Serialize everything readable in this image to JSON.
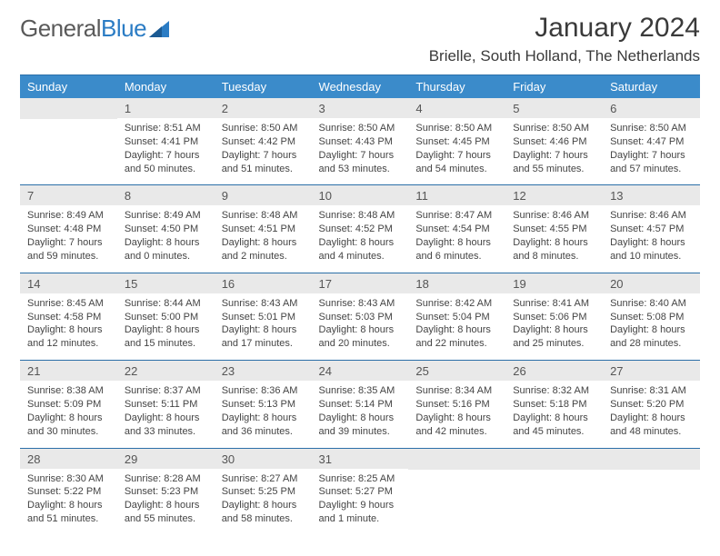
{
  "brand": {
    "part1": "General",
    "part2": "Blue"
  },
  "header": {
    "month_title": "January 2024",
    "location": "Brielle, South Holland, The Netherlands"
  },
  "style": {
    "header_bg": "#3b8bca",
    "header_fg": "#ffffff",
    "daynum_bg": "#e9e9e9",
    "rule_color": "#2b6fa8",
    "text_color": "#444444",
    "brand_gray": "#5a5a5a",
    "brand_blue": "#2b7cc4"
  },
  "weekdays": [
    "Sunday",
    "Monday",
    "Tuesday",
    "Wednesday",
    "Thursday",
    "Friday",
    "Saturday"
  ],
  "weeks": [
    [
      null,
      {
        "n": "1",
        "sr": "Sunrise: 8:51 AM",
        "ss": "Sunset: 4:41 PM",
        "d1": "Daylight: 7 hours",
        "d2": "and 50 minutes."
      },
      {
        "n": "2",
        "sr": "Sunrise: 8:50 AM",
        "ss": "Sunset: 4:42 PM",
        "d1": "Daylight: 7 hours",
        "d2": "and 51 minutes."
      },
      {
        "n": "3",
        "sr": "Sunrise: 8:50 AM",
        "ss": "Sunset: 4:43 PM",
        "d1": "Daylight: 7 hours",
        "d2": "and 53 minutes."
      },
      {
        "n": "4",
        "sr": "Sunrise: 8:50 AM",
        "ss": "Sunset: 4:45 PM",
        "d1": "Daylight: 7 hours",
        "d2": "and 54 minutes."
      },
      {
        "n": "5",
        "sr": "Sunrise: 8:50 AM",
        "ss": "Sunset: 4:46 PM",
        "d1": "Daylight: 7 hours",
        "d2": "and 55 minutes."
      },
      {
        "n": "6",
        "sr": "Sunrise: 8:50 AM",
        "ss": "Sunset: 4:47 PM",
        "d1": "Daylight: 7 hours",
        "d2": "and 57 minutes."
      }
    ],
    [
      {
        "n": "7",
        "sr": "Sunrise: 8:49 AM",
        "ss": "Sunset: 4:48 PM",
        "d1": "Daylight: 7 hours",
        "d2": "and 59 minutes."
      },
      {
        "n": "8",
        "sr": "Sunrise: 8:49 AM",
        "ss": "Sunset: 4:50 PM",
        "d1": "Daylight: 8 hours",
        "d2": "and 0 minutes."
      },
      {
        "n": "9",
        "sr": "Sunrise: 8:48 AM",
        "ss": "Sunset: 4:51 PM",
        "d1": "Daylight: 8 hours",
        "d2": "and 2 minutes."
      },
      {
        "n": "10",
        "sr": "Sunrise: 8:48 AM",
        "ss": "Sunset: 4:52 PM",
        "d1": "Daylight: 8 hours",
        "d2": "and 4 minutes."
      },
      {
        "n": "11",
        "sr": "Sunrise: 8:47 AM",
        "ss": "Sunset: 4:54 PM",
        "d1": "Daylight: 8 hours",
        "d2": "and 6 minutes."
      },
      {
        "n": "12",
        "sr": "Sunrise: 8:46 AM",
        "ss": "Sunset: 4:55 PM",
        "d1": "Daylight: 8 hours",
        "d2": "and 8 minutes."
      },
      {
        "n": "13",
        "sr": "Sunrise: 8:46 AM",
        "ss": "Sunset: 4:57 PM",
        "d1": "Daylight: 8 hours",
        "d2": "and 10 minutes."
      }
    ],
    [
      {
        "n": "14",
        "sr": "Sunrise: 8:45 AM",
        "ss": "Sunset: 4:58 PM",
        "d1": "Daylight: 8 hours",
        "d2": "and 12 minutes."
      },
      {
        "n": "15",
        "sr": "Sunrise: 8:44 AM",
        "ss": "Sunset: 5:00 PM",
        "d1": "Daylight: 8 hours",
        "d2": "and 15 minutes."
      },
      {
        "n": "16",
        "sr": "Sunrise: 8:43 AM",
        "ss": "Sunset: 5:01 PM",
        "d1": "Daylight: 8 hours",
        "d2": "and 17 minutes."
      },
      {
        "n": "17",
        "sr": "Sunrise: 8:43 AM",
        "ss": "Sunset: 5:03 PM",
        "d1": "Daylight: 8 hours",
        "d2": "and 20 minutes."
      },
      {
        "n": "18",
        "sr": "Sunrise: 8:42 AM",
        "ss": "Sunset: 5:04 PM",
        "d1": "Daylight: 8 hours",
        "d2": "and 22 minutes."
      },
      {
        "n": "19",
        "sr": "Sunrise: 8:41 AM",
        "ss": "Sunset: 5:06 PM",
        "d1": "Daylight: 8 hours",
        "d2": "and 25 minutes."
      },
      {
        "n": "20",
        "sr": "Sunrise: 8:40 AM",
        "ss": "Sunset: 5:08 PM",
        "d1": "Daylight: 8 hours",
        "d2": "and 28 minutes."
      }
    ],
    [
      {
        "n": "21",
        "sr": "Sunrise: 8:38 AM",
        "ss": "Sunset: 5:09 PM",
        "d1": "Daylight: 8 hours",
        "d2": "and 30 minutes."
      },
      {
        "n": "22",
        "sr": "Sunrise: 8:37 AM",
        "ss": "Sunset: 5:11 PM",
        "d1": "Daylight: 8 hours",
        "d2": "and 33 minutes."
      },
      {
        "n": "23",
        "sr": "Sunrise: 8:36 AM",
        "ss": "Sunset: 5:13 PM",
        "d1": "Daylight: 8 hours",
        "d2": "and 36 minutes."
      },
      {
        "n": "24",
        "sr": "Sunrise: 8:35 AM",
        "ss": "Sunset: 5:14 PM",
        "d1": "Daylight: 8 hours",
        "d2": "and 39 minutes."
      },
      {
        "n": "25",
        "sr": "Sunrise: 8:34 AM",
        "ss": "Sunset: 5:16 PM",
        "d1": "Daylight: 8 hours",
        "d2": "and 42 minutes."
      },
      {
        "n": "26",
        "sr": "Sunrise: 8:32 AM",
        "ss": "Sunset: 5:18 PM",
        "d1": "Daylight: 8 hours",
        "d2": "and 45 minutes."
      },
      {
        "n": "27",
        "sr": "Sunrise: 8:31 AM",
        "ss": "Sunset: 5:20 PM",
        "d1": "Daylight: 8 hours",
        "d2": "and 48 minutes."
      }
    ],
    [
      {
        "n": "28",
        "sr": "Sunrise: 8:30 AM",
        "ss": "Sunset: 5:22 PM",
        "d1": "Daylight: 8 hours",
        "d2": "and 51 minutes."
      },
      {
        "n": "29",
        "sr": "Sunrise: 8:28 AM",
        "ss": "Sunset: 5:23 PM",
        "d1": "Daylight: 8 hours",
        "d2": "and 55 minutes."
      },
      {
        "n": "30",
        "sr": "Sunrise: 8:27 AM",
        "ss": "Sunset: 5:25 PM",
        "d1": "Daylight: 8 hours",
        "d2": "and 58 minutes."
      },
      {
        "n": "31",
        "sr": "Sunrise: 8:25 AM",
        "ss": "Sunset: 5:27 PM",
        "d1": "Daylight: 9 hours",
        "d2": "and 1 minute."
      },
      null,
      null,
      null
    ]
  ]
}
